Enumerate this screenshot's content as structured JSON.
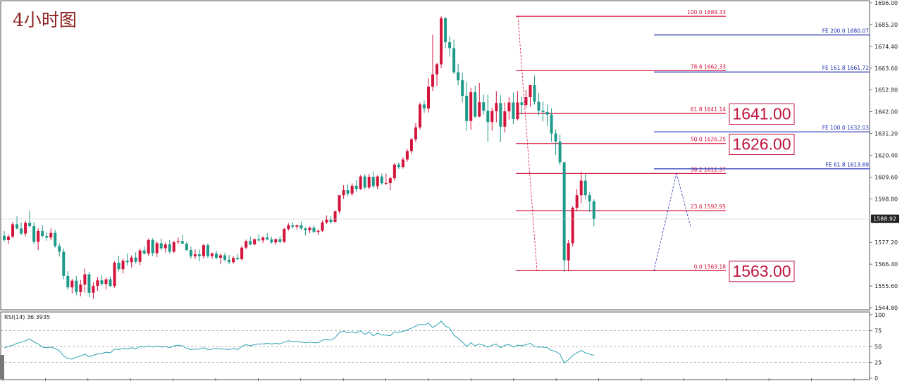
{
  "window_title": "4小时图",
  "chart_data": {
    "type": "candlestick",
    "price_axis": {
      "ticks": [
        "1696.00",
        "1685.20",
        "1674.40",
        "1663.60",
        "1652.80",
        "1642.00",
        "1631.20",
        "1620.40",
        "1609.60",
        "1598.80",
        "1588.00",
        "1577.20",
        "1566.40",
        "1555.60",
        "1544.80"
      ],
      "range": [
        1544.8,
        1696.0
      ],
      "current_price": "1588.92"
    },
    "rsi": {
      "label": "RSI(14) 36.3935",
      "ticks": [
        "100",
        "75",
        "50",
        "25",
        "0"
      ],
      "range": [
        0,
        100
      ],
      "levels": [
        75,
        50,
        25
      ],
      "color": "#2aa0b4"
    },
    "fib_retracement": {
      "color": "#d4143c",
      "levels": [
        {
          "label": "100.0  1689.33",
          "value": 1689.33
        },
        {
          "label": "78.6  1662.33",
          "value": 1662.33
        },
        {
          "label": "61.8  1641.14",
          "value": 1641.14
        },
        {
          "label": "50.0  1626.25",
          "value": 1626.25
        },
        {
          "label": "38.2  1611.37",
          "value": 1611.37
        },
        {
          "label": "23.6  1592.95",
          "value": 1592.95
        },
        {
          "label": "0.0  1563.18",
          "value": 1563.18
        }
      ]
    },
    "fib_expansion": {
      "color": "#1f2fb4",
      "levels": [
        {
          "label": "FE 200.0  1680.07",
          "value": 1680.07
        },
        {
          "label": "FE 161.8  1661.72",
          "value": 1661.72
        },
        {
          "label": "FE 100.0  1632.03",
          "value": 1632.03
        },
        {
          "label": "FE 61.8  1613.69",
          "value": 1613.69
        }
      ]
    },
    "price_boxes": [
      {
        "label": "1641.00",
        "value": 1641.0
      },
      {
        "label": "1626.00",
        "value": 1626.0
      },
      {
        "label": "1563.00",
        "value": 1563.0
      }
    ],
    "candles": [
      [
        1580.5,
        1582.8,
        1577.6,
        1578.4
      ],
      [
        1578.4,
        1581.2,
        1576.3,
        1580.1
      ],
      [
        1580.1,
        1587.4,
        1579.3,
        1586.2
      ],
      [
        1586.2,
        1590.1,
        1583.7,
        1584.1
      ],
      [
        1584.1,
        1587.2,
        1580.8,
        1581.6
      ],
      [
        1581.6,
        1587.8,
        1580.2,
        1586.9
      ],
      [
        1586.9,
        1593.1,
        1584.6,
        1585.3
      ],
      [
        1585.3,
        1587.2,
        1576.3,
        1577.5
      ],
      [
        1577.5,
        1584.2,
        1573.4,
        1582.9
      ],
      [
        1582.9,
        1585.8,
        1579.9,
        1580.4
      ],
      [
        1580.4,
        1582.3,
        1578.1,
        1579.6
      ],
      [
        1579.6,
        1584.2,
        1578.2,
        1581.9
      ],
      [
        1581.9,
        1583.4,
        1574.6,
        1575.4
      ],
      [
        1575.4,
        1576.8,
        1570.2,
        1572.6
      ],
      [
        1572.6,
        1574.1,
        1559.0,
        1560.6
      ],
      [
        1560.6,
        1562.9,
        1553.7,
        1554.9
      ],
      [
        1554.9,
        1559.1,
        1551.9,
        1558.2
      ],
      [
        1558.2,
        1560.6,
        1551.0,
        1552.6
      ],
      [
        1552.6,
        1558.6,
        1550.5,
        1556.3
      ],
      [
        1556.3,
        1564.2,
        1552.3,
        1561.4
      ],
      [
        1561.4,
        1562.6,
        1550.1,
        1552.2
      ],
      [
        1552.2,
        1557.4,
        1549.3,
        1555.6
      ],
      [
        1555.6,
        1560.1,
        1553.2,
        1558.4
      ],
      [
        1558.4,
        1560.8,
        1555.8,
        1556.6
      ],
      [
        1556.6,
        1559.7,
        1553.9,
        1558.9
      ],
      [
        1558.9,
        1560.3,
        1554.9,
        1555.6
      ],
      [
        1555.6,
        1567.9,
        1554.7,
        1567.1
      ],
      [
        1567.1,
        1570.4,
        1562.8,
        1563.9
      ],
      [
        1563.9,
        1569.2,
        1561.8,
        1568.1
      ],
      [
        1568.1,
        1571.6,
        1565.8,
        1567.4
      ],
      [
        1567.4,
        1570.8,
        1564.9,
        1569.7
      ],
      [
        1569.7,
        1572.3,
        1566.7,
        1567.6
      ],
      [
        1567.6,
        1574.1,
        1565.9,
        1573.2
      ],
      [
        1573.2,
        1575.3,
        1571.2,
        1571.7
      ],
      [
        1571.7,
        1579.1,
        1570.6,
        1578.4
      ],
      [
        1578.4,
        1579.3,
        1570.5,
        1571.9
      ],
      [
        1571.9,
        1577.8,
        1569.9,
        1576.8
      ],
      [
        1576.8,
        1579.1,
        1573.4,
        1574.3
      ],
      [
        1574.3,
        1577.1,
        1572.2,
        1576.2
      ],
      [
        1576.2,
        1578.4,
        1571.6,
        1572.6
      ],
      [
        1572.6,
        1578.0,
        1571.9,
        1577.3
      ],
      [
        1577.3,
        1579.6,
        1576.3,
        1577.8
      ],
      [
        1577.8,
        1581.0,
        1576.8,
        1576.6
      ],
      [
        1576.6,
        1577.4,
        1572.9,
        1573.4
      ],
      [
        1573.4,
        1575.2,
        1569.1,
        1570.3
      ],
      [
        1570.3,
        1573.8,
        1568.9,
        1571.3
      ],
      [
        1571.3,
        1573.6,
        1567.8,
        1570.4
      ],
      [
        1570.4,
        1576.6,
        1569.1,
        1575.8
      ],
      [
        1575.8,
        1576.7,
        1569.6,
        1570.4
      ],
      [
        1570.4,
        1572.2,
        1569.1,
        1571.7
      ],
      [
        1571.7,
        1573.1,
        1568.8,
        1569.6
      ],
      [
        1569.6,
        1571.6,
        1566.4,
        1570.8
      ],
      [
        1570.8,
        1572.1,
        1567.7,
        1568.6
      ],
      [
        1568.6,
        1571.0,
        1566.4,
        1567.4
      ],
      [
        1567.4,
        1570.4,
        1566.6,
        1569.5
      ],
      [
        1569.5,
        1571.4,
        1568.3,
        1568.9
      ],
      [
        1568.9,
        1575.4,
        1568.2,
        1574.6
      ],
      [
        1574.6,
        1578.6,
        1573.8,
        1577.8
      ],
      [
        1577.8,
        1580.2,
        1575.8,
        1576.2
      ],
      [
        1576.2,
        1579.2,
        1575.8,
        1578.8
      ],
      [
        1578.8,
        1581.3,
        1577.4,
        1578.2
      ],
      [
        1578.2,
        1580.3,
        1576.9,
        1579.6
      ],
      [
        1579.6,
        1581.9,
        1578.2,
        1578.7
      ],
      [
        1578.7,
        1580.1,
        1576.6,
        1577.2
      ],
      [
        1577.2,
        1579.2,
        1576.0,
        1578.8
      ],
      [
        1578.8,
        1580.3,
        1576.8,
        1577.5
      ],
      [
        1577.5,
        1584.4,
        1576.9,
        1583.9
      ],
      [
        1583.9,
        1586.7,
        1583.0,
        1585.7
      ],
      [
        1585.7,
        1587.4,
        1584.2,
        1585.0
      ],
      [
        1585.0,
        1586.0,
        1583.6,
        1585.7
      ],
      [
        1585.7,
        1587.6,
        1583.3,
        1584.1
      ],
      [
        1584.1,
        1584.9,
        1580.6,
        1583.2
      ],
      [
        1583.2,
        1585.1,
        1581.7,
        1584.5
      ],
      [
        1584.5,
        1585.8,
        1581.9,
        1582.4
      ],
      [
        1582.4,
        1583.6,
        1580.8,
        1583.0
      ],
      [
        1583.0,
        1588.1,
        1582.4,
        1587.1
      ],
      [
        1587.1,
        1590.6,
        1586.4,
        1588.5
      ],
      [
        1588.5,
        1590.3,
        1586.5,
        1587.4
      ],
      [
        1587.4,
        1593.1,
        1587.2,
        1592.6
      ],
      [
        1592.6,
        1600.6,
        1591.4,
        1600.6
      ],
      [
        1600.6,
        1605.6,
        1598.8,
        1603.1
      ],
      [
        1603.1,
        1606.1,
        1600.1,
        1601.4
      ],
      [
        1601.4,
        1606.5,
        1600.3,
        1605.3
      ],
      [
        1605.3,
        1608.1,
        1602.1,
        1603.7
      ],
      [
        1603.7,
        1610.6,
        1603.2,
        1609.9
      ],
      [
        1609.9,
        1611.1,
        1603.4,
        1604.4
      ],
      [
        1604.4,
        1611.2,
        1603.6,
        1609.7
      ],
      [
        1609.7,
        1612.3,
        1604.2,
        1605.1
      ],
      [
        1605.1,
        1610.6,
        1603.5,
        1609.9
      ],
      [
        1609.9,
        1611.4,
        1605.8,
        1606.5
      ],
      [
        1606.5,
        1611.3,
        1605.7,
        1606.6
      ],
      [
        1606.6,
        1609.7,
        1603.1,
        1609.0
      ],
      [
        1609.0,
        1616.6,
        1607.9,
        1615.8
      ],
      [
        1615.8,
        1616.9,
        1613.6,
        1614.6
      ],
      [
        1614.6,
        1619.4,
        1613.8,
        1618.3
      ],
      [
        1618.3,
        1623.6,
        1617.2,
        1622.5
      ],
      [
        1622.5,
        1629.1,
        1621.1,
        1628.3
      ],
      [
        1628.3,
        1636.3,
        1626.9,
        1634.2
      ],
      [
        1634.2,
        1646.6,
        1633.1,
        1645.6
      ],
      [
        1645.6,
        1647.6,
        1641.4,
        1643.6
      ],
      [
        1643.6,
        1658.6,
        1641.6,
        1654.4
      ],
      [
        1654.4,
        1680.2,
        1652.3,
        1660.5
      ],
      [
        1660.5,
        1666.3,
        1654.8,
        1665.5
      ],
      [
        1665.5,
        1689.3,
        1663.6,
        1688.4
      ],
      [
        1688.4,
        1689.0,
        1673.4,
        1676.5
      ],
      [
        1676.5,
        1679.3,
        1669.3,
        1673.5
      ],
      [
        1673.5,
        1677.7,
        1660.7,
        1661.6
      ],
      [
        1661.6,
        1665.8,
        1655.1,
        1657.6
      ],
      [
        1657.6,
        1661.3,
        1646.6,
        1649.9
      ],
      [
        1649.9,
        1656.8,
        1632.6,
        1637.4
      ],
      [
        1637.4,
        1653.9,
        1633.1,
        1651.7
      ],
      [
        1651.7,
        1654.9,
        1638.8,
        1639.6
      ],
      [
        1639.6,
        1656.3,
        1639.3,
        1646.7
      ],
      [
        1646.7,
        1650.4,
        1640.6,
        1642.5
      ],
      [
        1642.5,
        1650.4,
        1626.9,
        1636.9
      ],
      [
        1636.9,
        1644.0,
        1632.6,
        1642.3
      ],
      [
        1642.3,
        1652.2,
        1636.8,
        1646.3
      ],
      [
        1646.3,
        1650.2,
        1626.9,
        1634.6
      ],
      [
        1634.6,
        1646.6,
        1631.6,
        1642.2
      ],
      [
        1642.2,
        1649.3,
        1638.2,
        1646.6
      ],
      [
        1646.6,
        1651.6,
        1635.9,
        1638.4
      ],
      [
        1638.4,
        1652.3,
        1637.7,
        1646.6
      ],
      [
        1646.6,
        1649.5,
        1640.6,
        1645.4
      ],
      [
        1645.4,
        1652.7,
        1643.8,
        1649.2
      ],
      [
        1649.2,
        1655.2,
        1644.5,
        1655.2
      ],
      [
        1655.2,
        1659.8,
        1645.6,
        1646.9
      ],
      [
        1646.9,
        1651.2,
        1640.0,
        1642.5
      ],
      [
        1642.5,
        1647.0,
        1637.2,
        1641.9
      ],
      [
        1641.9,
        1645.6,
        1634.8,
        1640.6
      ],
      [
        1640.6,
        1643.7,
        1627.1,
        1631.2
      ],
      [
        1631.2,
        1633.2,
        1620.6,
        1627.2
      ],
      [
        1627.2,
        1630.6,
        1615.6,
        1616.9
      ],
      [
        1616.9,
        1617.2,
        1562.6,
        1568.3
      ],
      [
        1568.3,
        1578.4,
        1562.9,
        1576.8
      ],
      [
        1576.8,
        1595.1,
        1575.1,
        1594.4
      ],
      [
        1594.4,
        1603.6,
        1592.6,
        1600.6
      ],
      [
        1600.6,
        1612.2,
        1596.6,
        1607.8
      ],
      [
        1607.8,
        1611.1,
        1598.6,
        1600.6
      ],
      [
        1600.6,
        1602.1,
        1592.3,
        1597.6
      ],
      [
        1597.6,
        1598.6,
        1585.2,
        1588.9
      ]
    ],
    "rsi_values": [
      48,
      50,
      52,
      55,
      57,
      59,
      62,
      57,
      54,
      49,
      48,
      49,
      47,
      43,
      35,
      31,
      30,
      33,
      35,
      38,
      34,
      36,
      38,
      39,
      41,
      40,
      46,
      45,
      47,
      46,
      48,
      46,
      50,
      49,
      51,
      49,
      51,
      49,
      50,
      48,
      51,
      52,
      51,
      47,
      45,
      46,
      46,
      48,
      45,
      46,
      47,
      46,
      46,
      45,
      47,
      45,
      50,
      53,
      51,
      53,
      54,
      54,
      55,
      54,
      55,
      54,
      57,
      59,
      58,
      58,
      57,
      56,
      57,
      56,
      56,
      60,
      61,
      60,
      64,
      72,
      74,
      72,
      73,
      71,
      75,
      69,
      73,
      67,
      71,
      68,
      68,
      67,
      73,
      72,
      74,
      76,
      79,
      82,
      85,
      84,
      87,
      80,
      84,
      90,
      82,
      79,
      68,
      63,
      57,
      50,
      56,
      51,
      54,
      52,
      49,
      52,
      54,
      48,
      52,
      53,
      49,
      52,
      51,
      53,
      55,
      50,
      49,
      49,
      48,
      44,
      42,
      38,
      24,
      29,
      36,
      40,
      44,
      40,
      38,
      36
    ]
  }
}
